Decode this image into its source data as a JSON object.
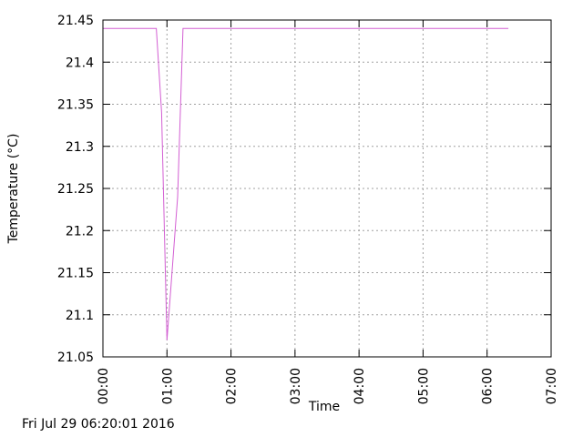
{
  "chart_data": {
    "type": "line",
    "title": "",
    "xlabel": "Time",
    "ylabel": "Temperature (°C)",
    "xlim": [
      0,
      420
    ],
    "ylim": [
      21.05,
      21.45
    ],
    "x_ticks": [
      {
        "value": 0,
        "label": "00:00"
      },
      {
        "value": 60,
        "label": "01:00"
      },
      {
        "value": 120,
        "label": "02:00"
      },
      {
        "value": 180,
        "label": "03:00"
      },
      {
        "value": 240,
        "label": "04:00"
      },
      {
        "value": 300,
        "label": "05:00"
      },
      {
        "value": 360,
        "label": "06:00"
      },
      {
        "value": 420,
        "label": "07:00"
      }
    ],
    "y_ticks": [
      {
        "value": 21.05,
        "label": "21.05"
      },
      {
        "value": 21.1,
        "label": "21.1"
      },
      {
        "value": 21.15,
        "label": "21.15"
      },
      {
        "value": 21.2,
        "label": "21.2"
      },
      {
        "value": 21.25,
        "label": "21.25"
      },
      {
        "value": 21.3,
        "label": "21.3"
      },
      {
        "value": 21.35,
        "label": "21.35"
      },
      {
        "value": 21.4,
        "label": "21.4"
      },
      {
        "value": 21.45,
        "label": "21.45"
      }
    ],
    "grid": true,
    "series": [
      {
        "color": "#d35fd3",
        "x": [
          0,
          50,
          55,
          60,
          70,
          75,
          80,
          380
        ],
        "y": [
          21.44,
          21.44,
          21.34,
          21.07,
          21.24,
          21.44,
          21.44,
          21.44
        ]
      }
    ]
  },
  "footer": {
    "timestamp": "Fri Jul 29 06:20:01 2016"
  }
}
